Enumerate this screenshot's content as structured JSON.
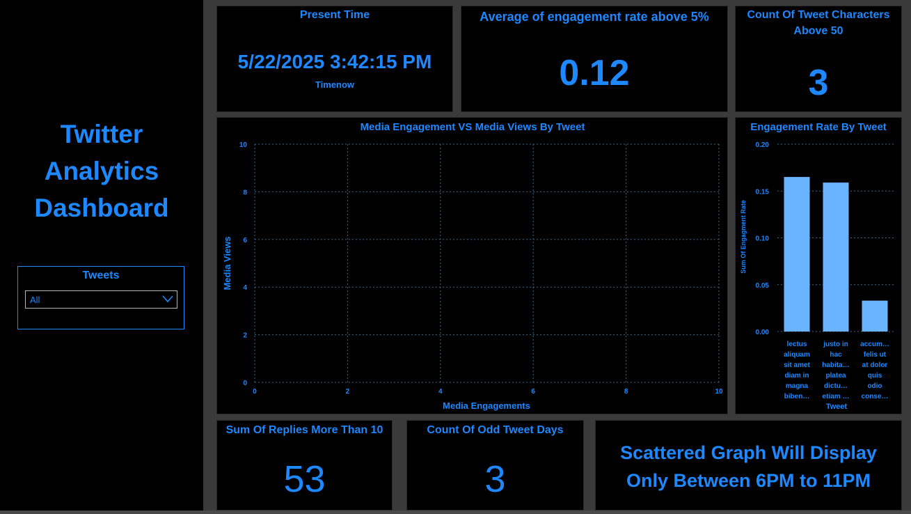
{
  "app": {
    "title_lines": [
      "Twitter",
      "Analytics",
      "Dashboard"
    ]
  },
  "slicer": {
    "title": "Tweets",
    "selected": "All"
  },
  "cards": {
    "present_time": {
      "title": "Present Time",
      "value": "5/22/2025 3:42:15 PM",
      "sub": "Timenow"
    },
    "avg_engagement": {
      "title": "Average of engagement rate above 5%",
      "value": "0.12"
    },
    "tweet_chars": {
      "title_line1": "Count Of Tweet Characters",
      "title_line2": "Above 50",
      "value": "3"
    },
    "replies": {
      "title": "Sum Of Replies More Than 10",
      "value": "53"
    },
    "odd_days": {
      "title": "Count Of Odd Tweet Days",
      "value": "3"
    },
    "scatter_note": {
      "line1": "Scattered Graph Will Display",
      "line2": "Only Between 6PM to 11PM"
    }
  },
  "scatter": {
    "title": "Media Engagement VS Media Views By Tweet",
    "xlabel": "Media Engagements",
    "ylabel": "Media Views",
    "xticks": [
      "0",
      "2",
      "4",
      "6",
      "8",
      "10"
    ],
    "yticks": [
      "0",
      "2",
      "4",
      "6",
      "8",
      "10"
    ]
  },
  "colors": {
    "accent": "#1e88ff",
    "bar": "#6ab4ff",
    "bg": "#000000",
    "grid": "#3c6a8c"
  },
  "chart_data": [
    {
      "type": "scatter",
      "title": "Media Engagement VS Media Views By Tweet",
      "xlabel": "Media Engagements",
      "ylabel": "Media Views",
      "xlim": [
        0,
        10
      ],
      "ylim": [
        0,
        10
      ],
      "grid": true,
      "series": []
    },
    {
      "type": "bar",
      "title": "Engagement Rate By Tweet",
      "xlabel": "Tweet",
      "ylabel": "Sum Of Engagment Rate",
      "ylim": [
        0,
        0.2
      ],
      "yticks": [
        "0.00",
        "0.05",
        "0.10",
        "0.15",
        "0.20"
      ],
      "grid": true,
      "categories": [
        [
          "lectus",
          "aliquam",
          "sit amet",
          "diam in",
          "magna",
          "biben…"
        ],
        [
          "justo in",
          "hac",
          "habita…",
          "platea",
          "dictu…",
          "etiam …"
        ],
        [
          "accum…",
          "felis ut",
          "at dolor",
          "quis",
          "odio",
          "conse…"
        ]
      ],
      "values": [
        0.165,
        0.159,
        0.033
      ]
    }
  ]
}
